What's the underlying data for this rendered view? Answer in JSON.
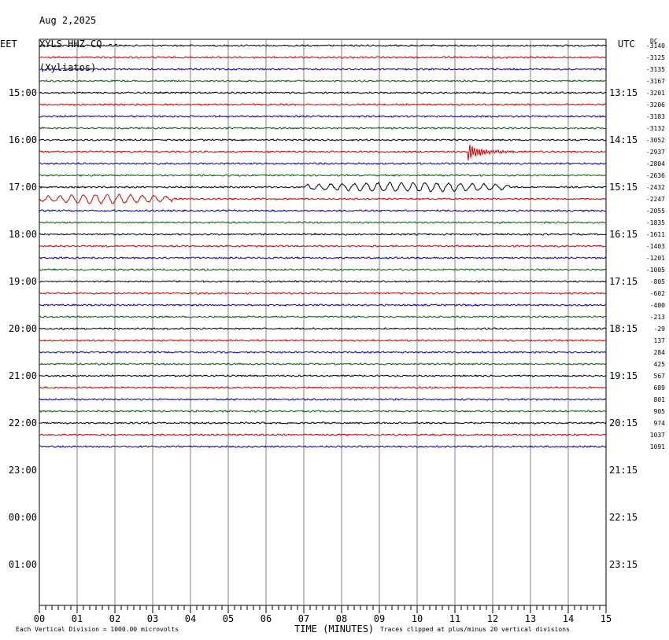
{
  "header": {
    "date": "Aug 2,2025",
    "station": "XYLS HHZ CQ --",
    "location": "(Xyliatos)"
  },
  "left_axis_title": "EET",
  "right_axis_title": "UTC",
  "dc_header": "DC",
  "footer": {
    "scale_note": "Each Vertical Division = 1000.00 microvolts",
    "xlabel": "TIME (MINUTES)",
    "clip_note": "Traces clipped at plus/minus 20 vertical divisions"
  },
  "chart_data": {
    "type": "line",
    "title": "Aug 2,2025  XYLS HHZ CQ --  (Xyliatos)",
    "xlabel": "TIME (MINUTES)",
    "x_ticks": [
      "00",
      "01",
      "02",
      "03",
      "04",
      "05",
      "06",
      "07",
      "08",
      "09",
      "10",
      "11",
      "12",
      "13",
      "14",
      "15"
    ],
    "xlim": [
      0,
      15
    ],
    "left_hour_labels": [
      "15:00",
      "16:00",
      "17:00",
      "18:00",
      "19:00",
      "20:00",
      "21:00",
      "22:00",
      "23:00",
      "00:00",
      "01:00"
    ],
    "right_hour_labels": [
      "13:15",
      "14:15",
      "15:15",
      "16:15",
      "17:15",
      "18:15",
      "19:15",
      "20:15",
      "21:15",
      "22:15",
      "23:15"
    ],
    "trace_colors": [
      "#000000",
      "#d00000",
      "#0000b0",
      "#006400"
    ],
    "trace_dc_offsets": [
      -3140,
      -3125,
      -3135,
      -3167,
      -3201,
      -3206,
      -3183,
      -3132,
      -3052,
      -2937,
      -2804,
      -2636,
      -2432,
      -2247,
      -2055,
      -1835,
      -1611,
      -1403,
      -1201,
      -1005,
      -805,
      -602,
      -400,
      -213,
      -29,
      137,
      284,
      425,
      567,
      689,
      801,
      905,
      974,
      1037,
      1091
    ],
    "vertical_division_microvolts": 1000.0,
    "clip_divisions": 20,
    "events": [
      {
        "trace": 9,
        "start_min": 11.35,
        "end_min": 12.9,
        "peak_amplitude": 1.0,
        "kind": "local quake"
      },
      {
        "trace": 12,
        "start_min": 7.0,
        "end_min": 12.5,
        "peak_amplitude": 0.55,
        "kind": "teleseismic surface waves"
      },
      {
        "trace": 13,
        "start_min": 0.0,
        "end_min": 3.5,
        "peak_amplitude": 0.45,
        "kind": "teleseismic surface waves"
      }
    ]
  }
}
